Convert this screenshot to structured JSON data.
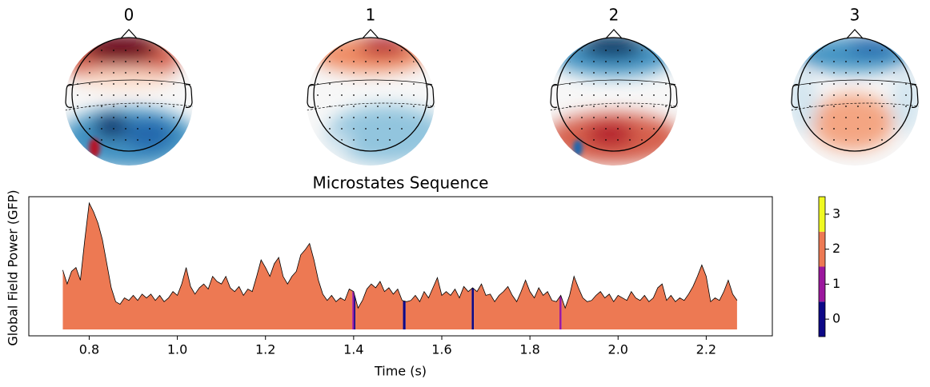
{
  "topomaps": {
    "titles": [
      "0",
      "1",
      "2",
      "3"
    ]
  },
  "chart_data": {
    "type": "area",
    "title": "Microstates Sequence",
    "xlabel": "Time (s)",
    "ylabel": "Global Field Power (GFP)",
    "line_color": "#000000",
    "x": [
      0.74,
      0.75,
      0.76,
      0.77,
      0.78,
      0.79,
      0.8,
      0.81,
      0.82,
      0.83,
      0.84,
      0.85,
      0.86,
      0.87,
      0.88,
      0.89,
      0.9,
      0.91,
      0.92,
      0.93,
      0.94,
      0.95,
      0.96,
      0.97,
      0.98,
      0.99,
      1.0,
      1.01,
      1.02,
      1.03,
      1.04,
      1.05,
      1.06,
      1.07,
      1.08,
      1.09,
      1.1,
      1.11,
      1.12,
      1.13,
      1.14,
      1.15,
      1.16,
      1.17,
      1.18,
      1.19,
      1.2,
      1.21,
      1.22,
      1.23,
      1.24,
      1.25,
      1.26,
      1.27,
      1.28,
      1.29,
      1.3,
      1.31,
      1.32,
      1.33,
      1.34,
      1.35,
      1.36,
      1.37,
      1.38,
      1.39,
      1.4,
      1.41,
      1.42,
      1.43,
      1.44,
      1.45,
      1.46,
      1.47,
      1.48,
      1.49,
      1.5,
      1.51,
      1.52,
      1.53,
      1.54,
      1.55,
      1.56,
      1.57,
      1.58,
      1.59,
      1.6,
      1.61,
      1.62,
      1.63,
      1.64,
      1.65,
      1.66,
      1.67,
      1.68,
      1.69,
      1.7,
      1.71,
      1.72,
      1.73,
      1.74,
      1.75,
      1.76,
      1.77,
      1.78,
      1.79,
      1.8,
      1.81,
      1.82,
      1.83,
      1.84,
      1.85,
      1.86,
      1.87,
      1.88,
      1.89,
      1.9,
      1.91,
      1.92,
      1.93,
      1.94,
      1.95,
      1.96,
      1.97,
      1.98,
      1.99,
      2.0,
      2.01,
      2.02,
      2.03,
      2.04,
      2.05,
      2.06,
      2.07,
      2.08,
      2.09,
      2.1,
      2.11,
      2.12,
      2.13,
      2.14,
      2.15,
      2.16,
      2.17,
      2.18,
      2.19,
      2.2,
      2.21,
      2.22,
      2.23,
      2.24,
      2.25,
      2.26,
      2.27
    ],
    "y": [
      0.47,
      0.36,
      0.46,
      0.49,
      0.39,
      0.71,
      1.0,
      0.93,
      0.84,
      0.71,
      0.52,
      0.33,
      0.22,
      0.2,
      0.25,
      0.23,
      0.27,
      0.23,
      0.28,
      0.25,
      0.28,
      0.23,
      0.27,
      0.22,
      0.25,
      0.3,
      0.27,
      0.36,
      0.49,
      0.34,
      0.28,
      0.33,
      0.36,
      0.32,
      0.42,
      0.38,
      0.36,
      0.42,
      0.33,
      0.3,
      0.34,
      0.27,
      0.32,
      0.3,
      0.42,
      0.55,
      0.49,
      0.42,
      0.52,
      0.57,
      0.42,
      0.36,
      0.42,
      0.46,
      0.59,
      0.63,
      0.68,
      0.55,
      0.39,
      0.28,
      0.23,
      0.27,
      0.22,
      0.25,
      0.23,
      0.32,
      0.3,
      0.17,
      0.23,
      0.32,
      0.36,
      0.33,
      0.38,
      0.3,
      0.33,
      0.28,
      0.32,
      0.23,
      0.22,
      0.23,
      0.27,
      0.22,
      0.3,
      0.25,
      0.33,
      0.41,
      0.27,
      0.3,
      0.27,
      0.32,
      0.25,
      0.34,
      0.3,
      0.33,
      0.3,
      0.36,
      0.27,
      0.28,
      0.22,
      0.27,
      0.3,
      0.34,
      0.27,
      0.22,
      0.3,
      0.39,
      0.3,
      0.25,
      0.33,
      0.27,
      0.3,
      0.23,
      0.22,
      0.27,
      0.17,
      0.27,
      0.42,
      0.33,
      0.25,
      0.22,
      0.23,
      0.27,
      0.3,
      0.25,
      0.28,
      0.22,
      0.27,
      0.25,
      0.23,
      0.3,
      0.25,
      0.23,
      0.27,
      0.22,
      0.25,
      0.33,
      0.36,
      0.23,
      0.27,
      0.22,
      0.25,
      0.23,
      0.28,
      0.34,
      0.42,
      0.51,
      0.42,
      0.22,
      0.25,
      0.23,
      0.3,
      0.39,
      0.28,
      0.23
    ],
    "segments": [
      {
        "state": 2,
        "start": 0.74,
        "end": 1.397
      },
      {
        "state": 1,
        "start": 1.397,
        "end": 1.401
      },
      {
        "state": 0,
        "start": 1.401,
        "end": 1.404
      },
      {
        "state": 2,
        "start": 1.404,
        "end": 1.512
      },
      {
        "state": 0,
        "start": 1.512,
        "end": 1.518
      },
      {
        "state": 2,
        "start": 1.518,
        "end": 1.668
      },
      {
        "state": 0,
        "start": 1.668,
        "end": 1.673
      },
      {
        "state": 2,
        "start": 1.673,
        "end": 1.867
      },
      {
        "state": 1,
        "start": 1.867,
        "end": 1.872
      },
      {
        "state": 2,
        "start": 1.872,
        "end": 2.27
      }
    ],
    "xlim": [
      0.663,
      2.35
    ],
    "xticks": [
      0.8,
      {
        "value": 1,
        "label": "1.0"
      },
      1.2,
      1.4,
      1.6,
      1.8,
      {
        "value": 2,
        "label": "2.0"
      },
      2.2
    ],
    "ylim": [
      -0.05,
      1.05
    ],
    "yticks": [],
    "colorbar": {
      "lim": [
        -0.5,
        3.5
      ],
      "ticks": [
        0,
        1,
        2,
        3
      ],
      "colors": [
        "#0d0887",
        "#9c179e",
        "#ed7953",
        "#f0f921"
      ]
    }
  }
}
